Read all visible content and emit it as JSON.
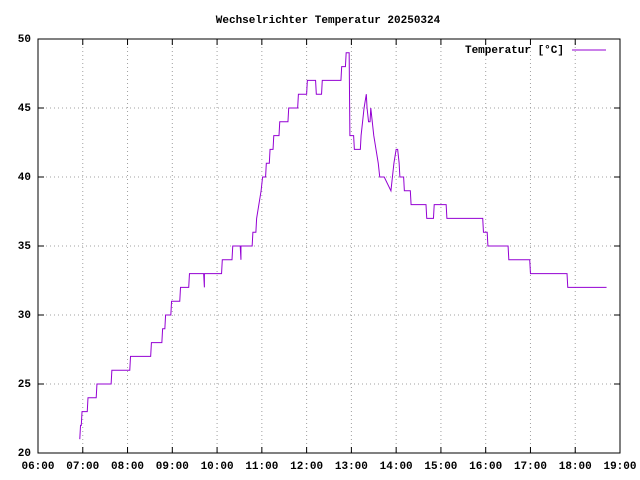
{
  "chart_data": {
    "type": "line",
    "title": "Wechselrichter Temperatur 20250324",
    "x": [
      "06:56",
      "06:57",
      "06:58",
      "06:59",
      "07:06",
      "07:07",
      "07:18",
      "07:19",
      "07:38",
      "07:39",
      "08:03",
      "08:04",
      "08:31",
      "08:32",
      "08:46",
      "08:47",
      "08:50",
      "08:51",
      "08:58",
      "08:59",
      "09:10",
      "09:11",
      "09:22",
      "09:23",
      "09:42",
      "09:43",
      "09:43",
      "10:06",
      "10:07",
      "10:20",
      "10:21",
      "10:31",
      "10:32",
      "10:32",
      "10:47",
      "10:48",
      "10:52",
      "10:53",
      "10:56",
      "10:59",
      "11:01",
      "11:05",
      "11:06",
      "11:10",
      "11:11",
      "11:15",
      "11:16",
      "11:23",
      "11:24",
      "11:35",
      "11:36",
      "11:48",
      "11:49",
      "12:00",
      "12:01",
      "12:12",
      "12:13",
      "12:20",
      "12:21",
      "12:46",
      "12:47",
      "12:52",
      "12:53",
      "12:57",
      "12:58",
      "13:03",
      "13:04",
      "13:12",
      "13:13",
      "13:15",
      "13:17",
      "13:20",
      "13:21",
      "13:23",
      "13:25",
      "13:26",
      "13:28",
      "13:30",
      "13:33",
      "13:36",
      "13:38",
      "13:44",
      "13:53",
      "13:55",
      "13:57",
      "14:00",
      "14:02",
      "14:04",
      "14:05",
      "14:10",
      "14:11",
      "14:19",
      "14:20",
      "14:40",
      "14:41",
      "14:50",
      "14:51",
      "15:07",
      "15:08",
      "15:56",
      "15:57",
      "16:02",
      "16:03",
      "16:30",
      "16:31",
      "16:59",
      "17:00",
      "17:49",
      "17:50",
      "18:42"
    ],
    "series": [
      {
        "name": "Temperatur [°C]",
        "color": "#9400d3",
        "values": [
          21,
          22,
          22,
          23,
          23,
          24,
          24,
          25,
          25,
          26,
          26,
          27,
          27,
          28,
          28,
          29,
          29,
          30,
          30,
          31,
          31,
          32,
          32,
          33,
          33,
          32,
          33,
          33,
          34,
          34,
          35,
          35,
          34,
          35,
          35,
          36,
          36,
          37,
          38,
          39,
          40,
          40,
          41,
          41,
          42,
          42,
          43,
          43,
          44,
          44,
          45,
          45,
          46,
          46,
          47,
          47,
          46,
          46,
          47,
          47,
          48,
          48,
          49,
          49,
          43,
          43,
          42,
          42,
          43,
          44,
          45,
          46,
          45,
          44,
          44,
          45,
          44,
          43,
          42,
          41,
          40,
          40,
          39,
          40,
          41,
          42,
          42,
          41,
          40,
          40,
          39,
          39,
          38,
          38,
          37,
          37,
          38,
          38,
          37,
          37,
          36,
          36,
          35,
          35,
          34,
          34,
          33,
          33,
          32,
          32
        ]
      }
    ],
    "xlim": [
      "06:00",
      "19:00"
    ],
    "xticks": [
      "06:00",
      "07:00",
      "08:00",
      "09:00",
      "10:00",
      "11:00",
      "12:00",
      "13:00",
      "14:00",
      "15:00",
      "16:00",
      "17:00",
      "18:00",
      "19:00"
    ],
    "ylim": [
      20,
      50
    ],
    "yticks": [
      20,
      25,
      30,
      35,
      40,
      45,
      50
    ],
    "grid": true,
    "legend": "top-right"
  }
}
